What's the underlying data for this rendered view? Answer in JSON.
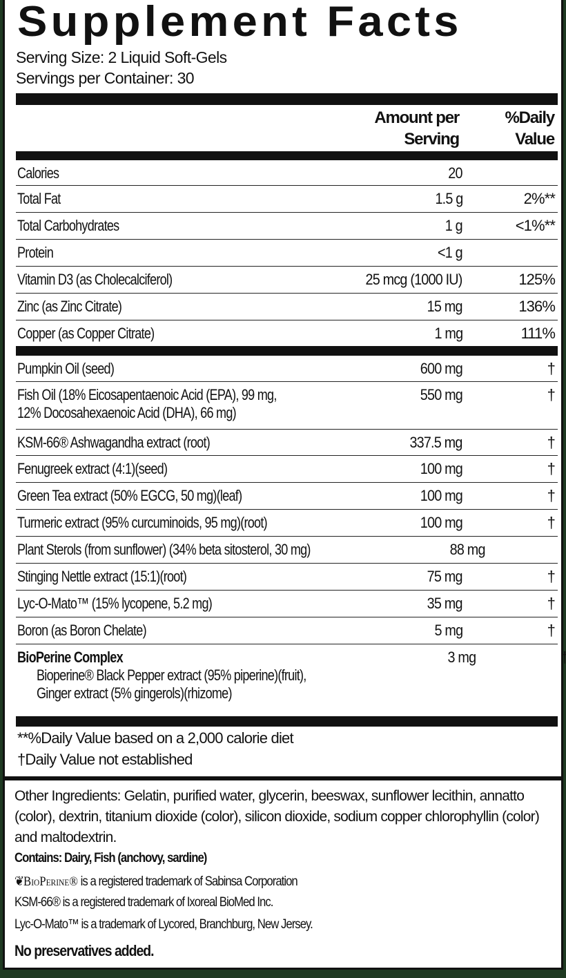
{
  "title": "Supplement Facts",
  "serving_size": "Serving Size:  2 Liquid Soft-Gels",
  "servings_per_container": "Servings per Container:  30",
  "header": {
    "amount_line1": "Amount per",
    "amount_line2": "Serving",
    "dv_line1": "%Daily",
    "dv_line2": "Value"
  },
  "nutrients": [
    {
      "name": "Calories",
      "amount": "20",
      "dv": ""
    },
    {
      "name": "Total Fat",
      "amount": "1.5 g",
      "dv": "2%**"
    },
    {
      "name": "Total Carbohydrates",
      "amount": "1 g",
      "dv": "<1%**"
    },
    {
      "name": "Protein",
      "amount": "<1 g",
      "dv": ""
    },
    {
      "name": "Vitamin D3 (as Cholecalciferol)",
      "amount": "25 mcg (1000 IU)",
      "dv": "125%"
    },
    {
      "name": "Zinc (as Zinc Citrate)",
      "amount": "15 mg",
      "dv": "136%"
    },
    {
      "name": "Copper (as Copper Citrate)",
      "amount": "1 mg",
      "dv": "111%"
    }
  ],
  "ingredients": [
    {
      "name": "Pumpkin Oil (seed)",
      "amount": "600 mg",
      "dv": "†"
    },
    {
      "name": "Fish Oil (18% Eicosapentaenoic Acid (EPA), 99 mg,",
      "name2": "12% Docosahexaenoic Acid (DHA), 66 mg)",
      "amount": "550 mg",
      "dv": "†"
    },
    {
      "name": "KSM-66® Ashwagandha extract (root)",
      "amount": "337.5 mg",
      "dv": "†"
    },
    {
      "name": "Fenugreek extract (4:1)(seed)",
      "amount": "100 mg",
      "dv": "†"
    },
    {
      "name": "Green Tea extract (50% EGCG, 50 mg)(leaf)",
      "amount": "100 mg",
      "dv": "†"
    },
    {
      "name": "Turmeric extract (95% curcuminoids, 95 mg)(root)",
      "amount": "100 mg",
      "dv": "†"
    },
    {
      "name": "Plant Sterols (from sunflower) (34% beta sitosterol, 30 mg)",
      "amount": "88 mg",
      "dv": "†"
    },
    {
      "name": "Stinging Nettle extract (15:1)(root)",
      "amount": "75 mg",
      "dv": "†"
    },
    {
      "name": "Lyc-O-Mato™ (15% lycopene, 5.2 mg)",
      "amount": "35 mg",
      "dv": "†"
    },
    {
      "name": "Boron (as Boron Chelate)",
      "amount": "5 mg",
      "dv": "†"
    },
    {
      "name": "BioPerine Complex",
      "name2": "Bioperine® Black Pepper extract (95% piperine)(fruit),",
      "name3": "Ginger extract (5% gingerols)(rhizome)",
      "amount": "3 mg",
      "dv": "†"
    }
  ],
  "footnotes": [
    "**%Daily Value based on a 2,000 calorie diet",
    "†Daily Value not established"
  ],
  "other_ingredients": "Other Ingredients:  Gelatin, purified water, glycerin, beeswax, sunflower lecithin, annatto (color), dextrin, titanium dioxide (color), silicon dioxide, sodium copper chlorophyllin (color) and maltodextrin.",
  "contains": "Contains:  Dairy, Fish (anchovy, sardine)",
  "bioperine_logo": "BioPerine®",
  "tm_bioperine": " is a registered trademark of Sabinsa Corporation",
  "tm_ksm": "KSM-66® is a registered trademark of Ixoreal BioMed Inc.",
  "tm_lyc": "Lyc-O-Mato™ is a trademark of Lycored, Branchburg, New Jersey.",
  "no_preservatives": "No preservatives added."
}
